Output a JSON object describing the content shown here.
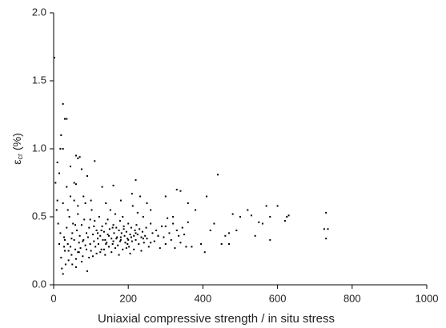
{
  "chart_data": {
    "type": "scatter",
    "xlabel": "Uniaxial compressive strength / in situ stress",
    "ylabel": [
      "ε",
      "cr",
      "(%)"
    ],
    "color": "#000000",
    "xlim": [
      0,
      1000
    ],
    "xticks": [
      0,
      200,
      400,
      600,
      800,
      1000
    ],
    "ylim": [
      0,
      2
    ],
    "yticks": [
      {
        "value": 0,
        "label": "0.0"
      },
      {
        "value": 0.5,
        "label": "0.5"
      },
      {
        "value": 1,
        "label": "1.0"
      },
      {
        "value": 1.5,
        "label": "1.5"
      },
      {
        "value": 2,
        "label": "2.0"
      }
    ],
    "x": [
      2,
      25,
      30,
      35,
      20,
      18,
      25,
      60,
      65,
      70,
      110,
      75,
      45,
      90,
      15,
      5,
      55,
      60,
      130,
      160,
      220,
      440,
      330,
      340,
      410,
      300,
      380,
      360,
      570,
      600,
      630,
      625,
      580,
      520,
      530,
      730,
      725,
      735,
      730,
      480,
      490,
      470,
      500,
      550,
      560,
      540,
      580,
      620,
      450,
      430,
      420,
      405,
      395,
      370,
      460,
      470,
      10,
      8,
      12,
      15,
      20,
      22,
      25,
      28,
      30,
      32,
      35,
      38,
      40,
      42,
      45,
      48,
      50,
      52,
      55,
      58,
      60,
      62,
      65,
      68,
      70,
      72,
      75,
      78,
      80,
      82,
      85,
      88,
      90,
      92,
      95,
      98,
      100,
      102,
      105,
      108,
      110,
      112,
      115,
      118,
      120,
      122,
      125,
      128,
      130,
      132,
      135,
      138,
      140,
      142,
      145,
      148,
      150,
      152,
      155,
      158,
      160,
      162,
      165,
      168,
      170,
      172,
      175,
      178,
      180,
      182,
      185,
      188,
      190,
      192,
      195,
      198,
      200,
      202,
      205,
      208,
      210,
      212,
      215,
      218,
      220,
      222,
      225,
      228,
      230,
      232,
      235,
      238,
      240,
      242,
      245,
      248,
      250,
      255,
      260,
      265,
      270,
      275,
      280,
      285,
      290,
      295,
      300,
      305,
      310,
      315,
      320,
      325,
      330,
      335,
      340,
      345,
      350,
      355,
      360,
      25,
      30,
      40,
      50,
      55,
      60,
      65,
      75,
      85,
      95,
      105,
      115,
      125,
      135,
      145,
      155,
      165,
      175,
      185,
      195,
      205,
      215,
      225,
      235,
      250,
      18,
      28,
      38,
      48,
      58,
      68,
      78,
      88,
      98,
      108,
      118,
      128,
      138,
      148,
      158,
      168,
      178,
      188,
      198,
      208,
      10,
      35,
      45,
      65,
      80,
      100,
      140,
      180,
      210,
      260,
      140,
      160,
      180,
      200,
      220,
      240,
      260,
      280,
      300,
      320
    ],
    "values": [
      1.67,
      1.33,
      1.22,
      1.22,
      1.1,
      1.0,
      1.0,
      0.95,
      0.93,
      0.94,
      0.91,
      0.85,
      0.87,
      0.8,
      0.82,
      0.75,
      0.75,
      0.74,
      0.72,
      0.73,
      0.77,
      0.81,
      0.7,
      0.69,
      0.65,
      0.65,
      0.55,
      0.6,
      0.58,
      0.58,
      0.51,
      0.5,
      0.5,
      0.55,
      0.51,
      0.53,
      0.41,
      0.41,
      0.34,
      0.52,
      0.4,
      0.38,
      0.5,
      0.46,
      0.45,
      0.36,
      0.33,
      0.47,
      0.3,
      0.45,
      0.4,
      0.24,
      0.3,
      0.28,
      0.36,
      0.3,
      0.9,
      0.55,
      0.45,
      0.3,
      0.2,
      0.12,
      0.08,
      0.35,
      0.25,
      0.15,
      0.42,
      0.3,
      0.18,
      0.5,
      0.28,
      0.22,
      0.38,
      0.45,
      0.33,
      0.26,
      0.19,
      0.4,
      0.52,
      0.31,
      0.36,
      0.27,
      0.44,
      0.21,
      0.33,
      0.48,
      0.29,
      0.38,
      0.1,
      0.35,
      0.42,
      0.3,
      0.25,
      0.55,
      0.37,
      0.32,
      0.47,
      0.28,
      0.4,
      0.34,
      0.3,
      0.5,
      0.36,
      0.26,
      0.43,
      0.33,
      0.39,
      0.22,
      0.45,
      0.31,
      0.37,
      0.28,
      0.41,
      0.55,
      0.34,
      0.3,
      0.44,
      0.38,
      0.27,
      0.42,
      0.35,
      0.29,
      0.4,
      0.47,
      0.33,
      0.38,
      0.26,
      0.43,
      0.36,
      0.31,
      0.39,
      0.34,
      0.45,
      0.28,
      0.37,
      0.42,
      0.32,
      0.58,
      0.36,
      0.4,
      0.33,
      0.44,
      0.37,
      0.3,
      0.41,
      0.65,
      0.35,
      0.39,
      0.5,
      0.31,
      0.36,
      0.42,
      0.34,
      0.28,
      0.45,
      0.38,
      0.32,
      0.4,
      0.36,
      0.27,
      0.43,
      0.35,
      0.3,
      0.49,
      0.38,
      0.33,
      0.45,
      0.27,
      0.4,
      0.36,
      0.31,
      0.42,
      0.37,
      0.28,
      0.46,
      0.6,
      0.33,
      0.25,
      0.15,
      0.62,
      0.13,
      0.24,
      0.17,
      0.6,
      0.2,
      0.21,
      0.23,
      0.24,
      0.26,
      0.48,
      0.24,
      0.52,
      0.22,
      0.5,
      0.27,
      0.23,
      0.26,
      0.53,
      0.25,
      0.6,
      0.38,
      0.28,
      0.55,
      0.34,
      0.44,
      0.24,
      0.32,
      0.26,
      0.48,
      0.43,
      0.38,
      0.4,
      0.33,
      0.36,
      0.42,
      0.34,
      0.32,
      0.41,
      0.3,
      0.35,
      0.62,
      0.72,
      0.65,
      0.58,
      0.65,
      0.62,
      0.6,
      0.62,
      0.67,
      0.55,
      0.3,
      0.32,
      0.35,
      0.33,
      0.38,
      0.34,
      0.31,
      0.36,
      0.43,
      0.5
    ]
  }
}
